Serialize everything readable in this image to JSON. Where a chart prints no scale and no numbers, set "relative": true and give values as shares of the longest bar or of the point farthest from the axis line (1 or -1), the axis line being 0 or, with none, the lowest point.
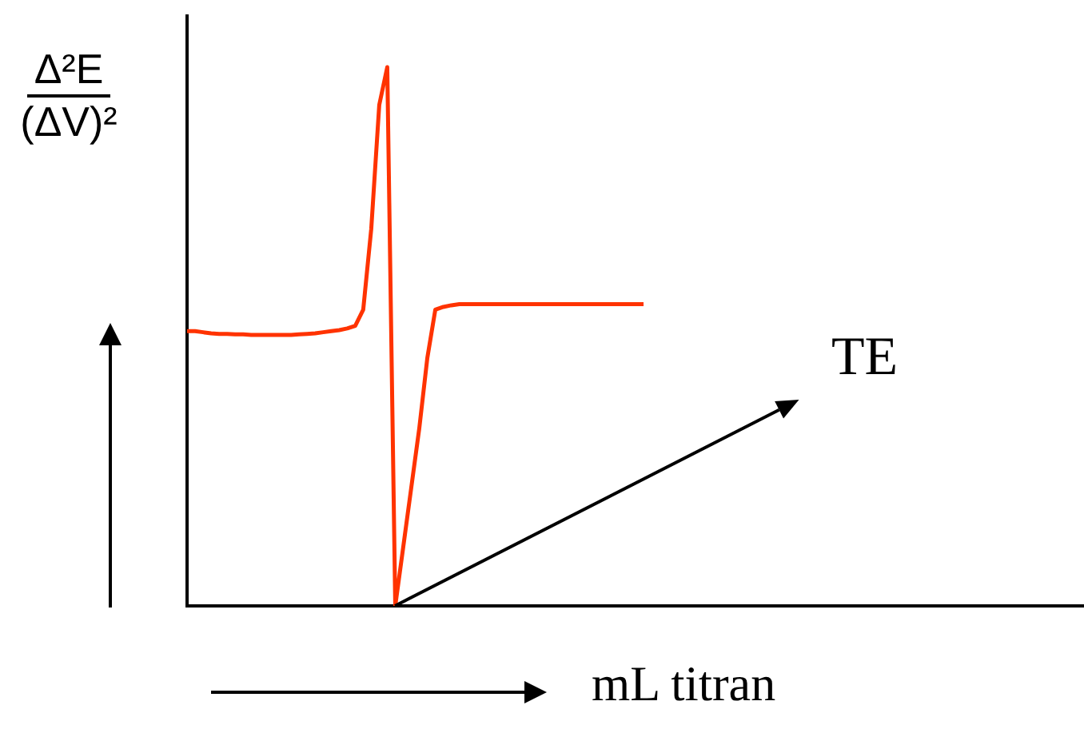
{
  "chart_data": {
    "type": "line",
    "relative": true,
    "tick_labels": false,
    "ylabel": "Δ²E (ΔV)²",
    "xlabel": "mL titran",
    "categories": [
      null,
      null,
      null,
      null,
      null,
      null,
      null,
      null,
      null,
      null,
      null,
      null,
      null,
      null,
      null,
      null,
      null,
      null,
      null,
      null,
      null,
      null,
      null,
      null,
      null,
      null,
      null,
      null,
      null,
      null,
      null,
      null,
      null,
      null,
      null,
      null,
      null,
      null,
      null,
      null,
      null,
      null,
      null,
      null,
      null,
      null,
      null,
      null,
      null,
      null,
      null,
      null,
      null,
      null,
      null,
      null,
      null,
      null,
      null,
      null,
      null,
      null,
      null,
      null,
      null,
      null,
      null,
      null,
      null,
      null,
      null,
      null,
      null,
      null,
      null,
      null,
      null,
      null,
      null,
      null,
      null,
      null,
      null,
      null,
      null,
      null,
      null,
      null,
      null,
      null,
      null,
      null,
      null,
      null,
      null,
      null,
      null,
      null,
      null,
      null,
      null,
      null,
      null,
      null,
      null,
      null,
      null,
      null,
      null,
      null,
      null,
      null,
      null
    ],
    "series": [
      {
        "color": "#ff3300",
        "values": [
          0.51,
          0.51,
          0.508,
          0.506,
          0.505,
          0.505,
          0.504,
          0.504,
          0.503,
          0.503,
          0.503,
          0.503,
          0.503,
          0.503,
          0.504,
          0.505,
          0.506,
          0.508,
          0.51,
          0.512,
          0.515,
          0.52,
          0.55,
          0.7,
          0.93,
          1,
          0,
          0.11,
          0.22,
          0.33,
          0.46,
          0.55,
          0.555,
          0.558,
          0.56,
          0.56,
          0.56,
          0.56,
          0.56,
          0.56,
          0.56,
          0.56,
          0.56,
          0.56,
          0.56,
          0.56,
          0.56,
          0.56,
          0.56,
          0.56,
          0.56,
          0.56,
          0.56,
          0.56,
          0.56,
          0.56,
          0.56,
          0.56,
          null,
          null,
          null,
          null,
          null,
          null,
          null,
          null,
          null,
          null,
          null,
          null,
          null,
          null,
          null,
          null,
          null,
          null,
          null,
          null,
          null,
          null,
          null,
          null,
          null,
          null,
          null,
          null,
          null,
          null,
          null,
          null,
          null,
          null,
          null,
          null,
          null,
          null,
          null,
          null,
          null,
          null,
          null,
          null,
          null,
          null,
          null,
          null,
          null,
          null,
          null,
          null,
          null,
          null,
          null
        ]
      }
    ],
    "annotations": [
      "TE"
    ]
  }
}
